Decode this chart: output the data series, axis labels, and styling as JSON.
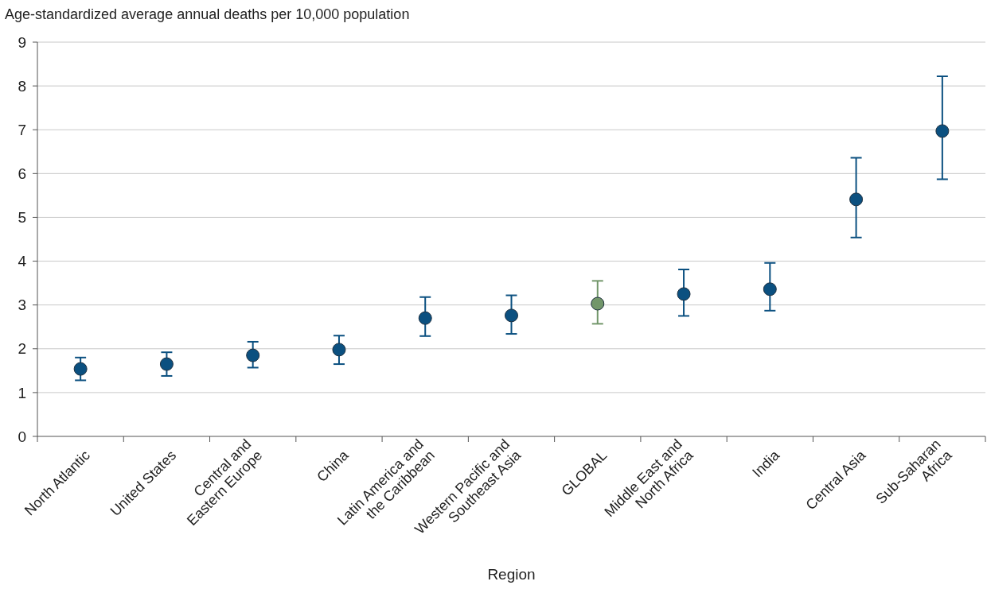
{
  "chart_data": {
    "type": "scatter",
    "ylabel": "Age-standardized average annual deaths per 10,000 population",
    "xlabel": "Region",
    "categories": [
      "North Atlantic",
      "United States",
      "Central and\nEastern Europe",
      "China",
      "Latin America and\nthe Caribbean",
      "Western Pacific and\nSoutheast Asia",
      "GLOBAL",
      "Middle East and\nNorth Africa",
      "India",
      "Central Asia",
      "Sub-Saharan\nAfrica"
    ],
    "values": [
      1.54,
      1.65,
      1.85,
      1.98,
      2.7,
      2.76,
      3.03,
      3.25,
      3.36,
      5.41,
      6.97
    ],
    "errors": [
      [
        1.28,
        1.8
      ],
      [
        1.38,
        1.92
      ],
      [
        1.57,
        2.16
      ],
      [
        1.65,
        2.3
      ],
      [
        2.29,
        3.18
      ],
      [
        2.34,
        3.22
      ],
      [
        2.57,
        3.55
      ],
      [
        2.75,
        3.81
      ],
      [
        2.87,
        3.96
      ],
      [
        4.54,
        6.36
      ],
      [
        5.87,
        8.22
      ]
    ],
    "colors": [
      "#0b5080",
      "#0b5080",
      "#0b5080",
      "#0b5080",
      "#0b5080",
      "#0b5080",
      "#72966a",
      "#0b5080",
      "#0b5080",
      "#0b5080",
      "#0b5080"
    ],
    "marker": "circle",
    "ylim": [
      0,
      9
    ],
    "yticks": [
      0,
      1,
      2,
      3,
      4,
      5,
      6,
      7,
      8,
      9
    ],
    "grid": "y"
  }
}
